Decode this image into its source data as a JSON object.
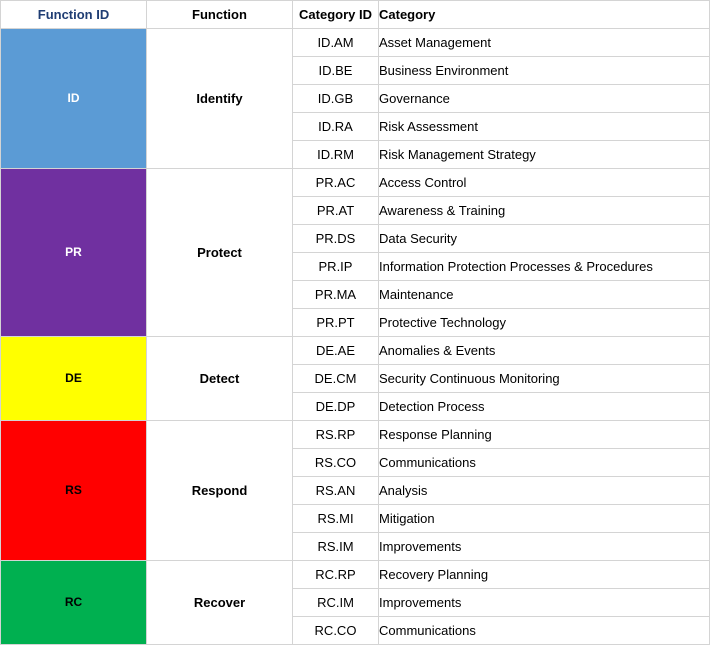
{
  "header": {
    "function_id": "Function ID",
    "function": "Function",
    "category_id": "Category ID",
    "category": "Category"
  },
  "functions": [
    {
      "id": "ID",
      "name": "Identify",
      "color": "#5b9bd5",
      "text_color": "#ffffff",
      "categories": [
        {
          "id": "ID.AM",
          "name": "Asset Management"
        },
        {
          "id": "ID.BE",
          "name": "Business Environment"
        },
        {
          "id": "ID.GB",
          "name": "Governance"
        },
        {
          "id": "ID.RA",
          "name": "Risk Assessment"
        },
        {
          "id": "ID.RM",
          "name": "Risk Management Strategy"
        }
      ]
    },
    {
      "id": "PR",
      "name": "Protect",
      "color": "#7030a0",
      "text_color": "#ffffff",
      "categories": [
        {
          "id": "PR.AC",
          "name": "Access Control"
        },
        {
          "id": "PR.AT",
          "name": "Awareness & Training"
        },
        {
          "id": "PR.DS",
          "name": "Data Security"
        },
        {
          "id": "PR.IP",
          "name": "Information Protection Processes & Procedures"
        },
        {
          "id": "PR.MA",
          "name": "Maintenance"
        },
        {
          "id": "PR.PT",
          "name": "Protective Technology"
        }
      ]
    },
    {
      "id": "DE",
      "name": "Detect",
      "color": "#ffff00",
      "text_color": "#000000",
      "categories": [
        {
          "id": "DE.AE",
          "name": "Anomalies & Events"
        },
        {
          "id": "DE.CM",
          "name": "Security Continuous Monitoring"
        },
        {
          "id": "DE.DP",
          "name": "Detection Process"
        }
      ]
    },
    {
      "id": "RS",
      "name": "Respond",
      "color": "#ff0000",
      "text_color": "#000000",
      "categories": [
        {
          "id": "RS.RP",
          "name": "Response Planning"
        },
        {
          "id": "RS.CO",
          "name": "Communications"
        },
        {
          "id": "RS.AN",
          "name": "Analysis"
        },
        {
          "id": "RS.MI",
          "name": "Mitigation"
        },
        {
          "id": "RS.IM",
          "name": "Improvements"
        }
      ]
    },
    {
      "id": "RC",
      "name": "Recover",
      "color": "#00b050",
      "text_color": "#000000",
      "categories": [
        {
          "id": "RC.RP",
          "name": "Recovery Planning"
        },
        {
          "id": "RC.IM",
          "name": "Improvements"
        },
        {
          "id": "RC.CO",
          "name": "Communications"
        }
      ]
    }
  ]
}
